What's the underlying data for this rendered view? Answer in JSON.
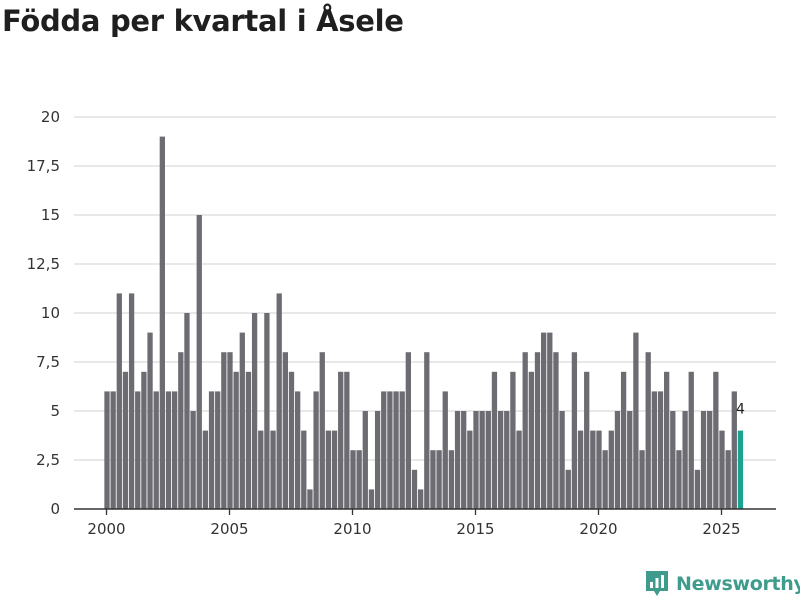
{
  "title": "Födda per kvartal i Åsele",
  "brand": {
    "name": "Newsworthy",
    "color": "#3f9c8c",
    "icon": "newsworthy-logo-icon"
  },
  "colors": {
    "bar": "#6d6c72",
    "highlight": "#1aa391",
    "grid": "#d9d9d9",
    "axis": "#333333"
  },
  "chart_data": {
    "type": "bar",
    "title": "Födda per kvartal i Åsele",
    "xlabel": "",
    "ylabel": "",
    "ylim": [
      0,
      20
    ],
    "y_ticks": [
      0,
      2.5,
      5,
      7.5,
      10,
      12.5,
      15,
      17.5,
      20
    ],
    "y_tick_labels": [
      "0",
      "2,5",
      "5",
      "7,5",
      "10",
      "12,5",
      "15",
      "17,5",
      "20"
    ],
    "x_ticks": [
      2000,
      2005,
      2010,
      2015,
      2020,
      2025
    ],
    "x_tick_labels": [
      "2000",
      "2005",
      "2010",
      "2015",
      "2020",
      "2025"
    ],
    "grid": true,
    "start_year": 2000,
    "quarters_per_year": 4,
    "values": [
      6,
      6,
      11,
      7,
      11,
      6,
      7,
      9,
      6,
      19,
      6,
      6,
      8,
      10,
      5,
      15,
      4,
      6,
      6,
      8,
      8,
      7,
      9,
      7,
      10,
      4,
      10,
      4,
      11,
      8,
      7,
      6,
      4,
      1,
      6,
      8,
      4,
      4,
      7,
      7,
      3,
      3,
      5,
      1,
      5,
      6,
      6,
      6,
      6,
      8,
      2,
      1,
      8,
      3,
      3,
      6,
      3,
      5,
      5,
      4,
      5,
      5,
      5,
      7,
      5,
      5,
      7,
      4,
      8,
      7,
      8,
      9,
      9,
      8,
      5,
      2,
      8,
      4,
      7,
      4,
      4,
      3,
      4,
      5,
      7,
      5,
      9,
      3,
      8,
      6,
      6,
      7,
      5,
      3,
      5,
      7,
      2,
      5,
      5,
      7,
      4,
      3,
      6,
      4
    ],
    "highlight_index": 103,
    "highlight_label": "4"
  }
}
